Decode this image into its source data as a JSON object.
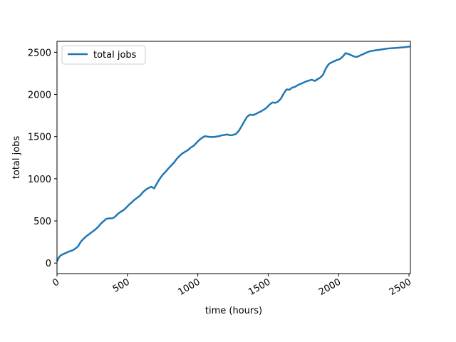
{
  "chart_data": {
    "type": "line",
    "title": "",
    "xlabel": "time (hours)",
    "ylabel": "total jobs",
    "xlim": [
      0,
      2510
    ],
    "ylim": [
      -125,
      2630
    ],
    "xticks": [
      0,
      500,
      1000,
      1500,
      2000,
      2500
    ],
    "xtick_labels": [
      "0",
      "500",
      "1000",
      "1500",
      "2000",
      "2500"
    ],
    "yticks": [
      0,
      500,
      1000,
      1500,
      2000,
      2500
    ],
    "ytick_labels": [
      "0",
      "500",
      "1000",
      "1500",
      "2000",
      "2500"
    ],
    "xtick_rotation_deg": 30,
    "grid": false,
    "legend": {
      "placement": "top-left",
      "entries": [
        "total jobs"
      ]
    },
    "colors": {
      "series": "#1f77b4"
    },
    "series": [
      {
        "name": "total jobs",
        "x": [
          0,
          10,
          20,
          30,
          50,
          70,
          90,
          110,
          130,
          150,
          170,
          190,
          210,
          230,
          250,
          270,
          290,
          310,
          330,
          350,
          370,
          390,
          410,
          430,
          450,
          470,
          490,
          510,
          530,
          550,
          570,
          590,
          610,
          630,
          650,
          670,
          690,
          710,
          730,
          750,
          770,
          790,
          810,
          830,
          850,
          870,
          890,
          910,
          930,
          950,
          970,
          990,
          1010,
          1030,
          1050,
          1070,
          1090,
          1110,
          1130,
          1150,
          1170,
          1190,
          1210,
          1230,
          1250,
          1270,
          1290,
          1310,
          1330,
          1350,
          1370,
          1390,
          1410,
          1430,
          1450,
          1470,
          1490,
          1510,
          1530,
          1550,
          1570,
          1590,
          1610,
          1630,
          1650,
          1670,
          1690,
          1710,
          1730,
          1750,
          1770,
          1790,
          1810,
          1830,
          1850,
          1870,
          1890,
          1910,
          1930,
          1950,
          1970,
          1990,
          2010,
          2030,
          2050,
          2070,
          2090,
          2110,
          2130,
          2150,
          2170,
          2190,
          2210,
          2230,
          2250,
          2270,
          2290,
          2310,
          2330,
          2350,
          2370,
          2390,
          2410,
          2430,
          2450,
          2470,
          2490,
          2510
        ],
        "y": [
          20,
          55,
          80,
          95,
          110,
          125,
          140,
          150,
          170,
          200,
          255,
          290,
          320,
          345,
          370,
          395,
          425,
          465,
          495,
          525,
          530,
          530,
          545,
          580,
          605,
          625,
          655,
          690,
          720,
          750,
          775,
          800,
          840,
          870,
          890,
          905,
          885,
          945,
          1000,
          1045,
          1080,
          1120,
          1155,
          1190,
          1235,
          1270,
          1300,
          1320,
          1340,
          1370,
          1390,
          1425,
          1460,
          1485,
          1505,
          1500,
          1495,
          1495,
          1500,
          1505,
          1515,
          1520,
          1525,
          1515,
          1520,
          1530,
          1565,
          1620,
          1680,
          1735,
          1760,
          1755,
          1765,
          1785,
          1800,
          1820,
          1845,
          1880,
          1905,
          1900,
          1915,
          1950,
          2010,
          2060,
          2055,
          2080,
          2090,
          2110,
          2125,
          2140,
          2155,
          2165,
          2175,
          2160,
          2180,
          2200,
          2235,
          2310,
          2360,
          2380,
          2395,
          2410,
          2420,
          2450,
          2490,
          2480,
          2465,
          2450,
          2445,
          2460,
          2475,
          2490,
          2505,
          2515,
          2520,
          2525,
          2530,
          2535,
          2540,
          2545,
          2548,
          2550,
          2552,
          2555,
          2558,
          2560,
          2565,
          2570
        ]
      }
    ]
  }
}
